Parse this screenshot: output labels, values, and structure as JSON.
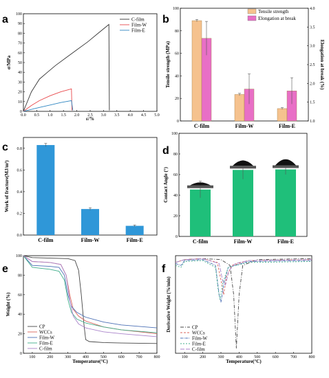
{
  "chart_data": [
    {
      "panel": "a",
      "type": "line",
      "xlabel": "ε/%",
      "ylabel": "σ/MPa",
      "xlim": [
        0,
        5.0
      ],
      "ylim": [
        0,
        100
      ],
      "xticks": [
        "0.0",
        "0.5",
        "1.0",
        "1.5",
        "2.0",
        "2.5",
        "3.0",
        "3.5",
        "4.0",
        "4.5",
        "5.0"
      ],
      "yticks": [
        "0",
        "10",
        "20",
        "30",
        "40",
        "50",
        "60",
        "70",
        "80",
        "90",
        "100"
      ],
      "legend_position": "top-right",
      "series": [
        {
          "name": "C-film",
          "color": "#333333",
          "points": [
            [
              0,
              0
            ],
            [
              0.3,
              20
            ],
            [
              0.6,
              33
            ],
            [
              0.9,
              40
            ],
            [
              1.2,
              47
            ],
            [
              1.6,
              55
            ],
            [
              2.0,
              63
            ],
            [
              2.4,
              71
            ],
            [
              2.8,
              80
            ],
            [
              3.2,
              89
            ],
            [
              3.22,
              1
            ]
          ]
        },
        {
          "name": "Film-W",
          "color": "#e8474a",
          "points": [
            [
              0,
              0
            ],
            [
              0.3,
              6
            ],
            [
              0.6,
              11
            ],
            [
              1.0,
              16
            ],
            [
              1.4,
              20
            ],
            [
              1.8,
              23
            ],
            [
              1.82,
              1
            ]
          ]
        },
        {
          "name": "Film-E",
          "color": "#2e86c1",
          "points": [
            [
              0,
              0
            ],
            [
              0.3,
              2
            ],
            [
              0.6,
              4
            ],
            [
              1.0,
              6.5
            ],
            [
              1.4,
              9
            ],
            [
              1.8,
              11
            ],
            [
              1.85,
              1
            ]
          ]
        }
      ]
    },
    {
      "panel": "b",
      "type": "bar",
      "categories": [
        "C-film",
        "Film-W",
        "Film-E"
      ],
      "ylabel": "Tensile strength (MPa)",
      "y2label": "Elongation at break (%)",
      "ylim": [
        0,
        100
      ],
      "y2lim": [
        1.0,
        4.0
      ],
      "yticks": [
        "0",
        "20",
        "40",
        "60",
        "80",
        "100"
      ],
      "y2ticks": [
        "1.0",
        "1.5",
        "2.0",
        "2.5",
        "3.0",
        "3.5",
        "4.0"
      ],
      "legend_position": "top-right",
      "series": [
        {
          "name": "Tensile strength",
          "color": "#f5c28e",
          "axis": "left",
          "values": [
            89,
            23.5,
            11
          ],
          "errors": [
            1,
            1,
            0.8
          ]
        },
        {
          "name": "Elongation at break",
          "color": "#e86fc6",
          "axis": "right",
          "values": [
            3.2,
            1.85,
            1.8
          ],
          "errors": [
            0.45,
            0.4,
            0.35
          ]
        }
      ]
    },
    {
      "panel": "c",
      "type": "bar",
      "categories": [
        "C-film",
        "Film-W",
        "Film-E"
      ],
      "ylabel": "Work of fracture(MJ/m³)",
      "ylim": [
        0,
        0.9
      ],
      "yticks": [
        "0.0",
        "0.2",
        "0.4",
        "0.6",
        "0.8"
      ],
      "series": [
        {
          "color": "#2f97d8",
          "values": [
            0.83,
            0.24,
            0.085
          ],
          "errors": [
            0.015,
            0.012,
            0.008
          ]
        }
      ]
    },
    {
      "panel": "d",
      "type": "bar",
      "categories": [
        "C-film",
        "Film-W",
        "Film-E"
      ],
      "ylabel": "Contact Angle (°)",
      "ylim": [
        0,
        100
      ],
      "yticks": [
        "0",
        "20",
        "40",
        "60",
        "80",
        "100"
      ],
      "series": [
        {
          "color": "#1fbf7a",
          "values": [
            45.5,
            64.5,
            65
          ],
          "errors": [
            8,
            9,
            5
          ]
        }
      ]
    },
    {
      "panel": "e",
      "type": "line",
      "xlabel": "Temperature(°C)",
      "ylabel": "Weight (%)",
      "xlim": [
        50,
        800
      ],
      "ylim": [
        0,
        100
      ],
      "xticks": [
        "100",
        "200",
        "300",
        "400",
        "500",
        "600",
        "700",
        "800"
      ],
      "yticks": [
        "0",
        "20",
        "40",
        "60",
        "80",
        "100"
      ],
      "legend_position": "bottom-left",
      "series": [
        {
          "name": "CP",
          "color": "#444444",
          "points": [
            [
              50,
              100
            ],
            [
              100,
              98
            ],
            [
              200,
              97.5
            ],
            [
              300,
              97
            ],
            [
              340,
              95
            ],
            [
              360,
              85
            ],
            [
              375,
              60
            ],
            [
              390,
              30
            ],
            [
              400,
              14
            ],
            [
              420,
              12
            ],
            [
              500,
              11
            ],
            [
              600,
              10.5
            ],
            [
              800,
              10
            ]
          ]
        },
        {
          "name": "WCCs",
          "color": "#d9625a",
          "points": [
            [
              50,
              100
            ],
            [
              100,
              94
            ],
            [
              200,
              93
            ],
            [
              260,
              91
            ],
            [
              290,
              80
            ],
            [
              310,
              60
            ],
            [
              330,
              45
            ],
            [
              360,
              38
            ],
            [
              400,
              33
            ],
            [
              500,
              27
            ],
            [
              600,
              24
            ],
            [
              800,
              20
            ]
          ]
        },
        {
          "name": "Film-W",
          "color": "#4a6fb5",
          "points": [
            [
              50,
              100
            ],
            [
              100,
              90
            ],
            [
              200,
              89
            ],
            [
              250,
              88
            ],
            [
              280,
              80
            ],
            [
              300,
              60
            ],
            [
              320,
              48
            ],
            [
              350,
              42
            ],
            [
              400,
              37
            ],
            [
              500,
              32
            ],
            [
              600,
              29
            ],
            [
              800,
              26
            ]
          ]
        },
        {
          "name": "Film-E",
          "color": "#3fae8a",
          "points": [
            [
              50,
              100
            ],
            [
              100,
              88
            ],
            [
              200,
              86
            ],
            [
              250,
              84
            ],
            [
              280,
              75
            ],
            [
              300,
              55
            ],
            [
              320,
              42
            ],
            [
              350,
              35
            ],
            [
              400,
              31
            ],
            [
              500,
              27
            ],
            [
              600,
              24
            ],
            [
              800,
              21
            ]
          ]
        },
        {
          "name": "C-film",
          "color": "#a882c9",
          "points": [
            [
              50,
              100
            ],
            [
              100,
              94
            ],
            [
              200,
              93
            ],
            [
              260,
              91
            ],
            [
              290,
              80
            ],
            [
              310,
              55
            ],
            [
              330,
              38
            ],
            [
              360,
              30
            ],
            [
              400,
              26
            ],
            [
              500,
              22
            ],
            [
              600,
              20
            ],
            [
              800,
              17
            ]
          ]
        }
      ]
    },
    {
      "panel": "f",
      "type": "line",
      "xlabel": "Temperature(°C)",
      "ylabel": "Derivative Weight (%/min)",
      "xlim": [
        50,
        800
      ],
      "ylim": [
        0,
        1
      ],
      "xticks": [
        "100",
        "200",
        "300",
        "400",
        "500",
        "600",
        "700",
        "800"
      ],
      "legend_position": "bottom-left",
      "series": [
        {
          "name": "CP",
          "color": "#444444",
          "points": [
            [
              50,
              0.93
            ],
            [
              100,
              0.96
            ],
            [
              200,
              0.97
            ],
            [
              300,
              0.96
            ],
            [
              350,
              0.9
            ],
            [
              370,
              0.6
            ],
            [
              385,
              0.05
            ],
            [
              400,
              0.6
            ],
            [
              420,
              0.9
            ],
            [
              500,
              0.96
            ],
            [
              800,
              0.97
            ]
          ]
        },
        {
          "name": "WCCs",
          "color": "#d9625a",
          "points": [
            [
              50,
              0.93
            ],
            [
              100,
              0.96
            ],
            [
              200,
              0.97
            ],
            [
              280,
              0.93
            ],
            [
              300,
              0.75
            ],
            [
              315,
              0.6
            ],
            [
              330,
              0.78
            ],
            [
              360,
              0.9
            ],
            [
              450,
              0.95
            ],
            [
              800,
              0.96
            ]
          ]
        },
        {
          "name": "Film-W",
          "color": "#4a6fb5",
          "points": [
            [
              50,
              0.92
            ],
            [
              80,
              0.9
            ],
            [
              100,
              0.95
            ],
            [
              200,
              0.96
            ],
            [
              270,
              0.9
            ],
            [
              290,
              0.6
            ],
            [
              300,
              0.52
            ],
            [
              315,
              0.7
            ],
            [
              340,
              0.88
            ],
            [
              450,
              0.94
            ],
            [
              800,
              0.95
            ]
          ]
        },
        {
          "name": "Film-E",
          "color": "#3fae8a",
          "points": [
            [
              50,
              0.9
            ],
            [
              80,
              0.88
            ],
            [
              100,
              0.94
            ],
            [
              200,
              0.95
            ],
            [
              270,
              0.88
            ],
            [
              285,
              0.65
            ],
            [
              295,
              0.55
            ],
            [
              310,
              0.72
            ],
            [
              340,
              0.88
            ],
            [
              450,
              0.93
            ],
            [
              800,
              0.94
            ]
          ]
        },
        {
          "name": "C-film",
          "color": "#a882c9",
          "points": [
            [
              50,
              0.93
            ],
            [
              100,
              0.96
            ],
            [
              200,
              0.97
            ],
            [
              290,
              0.92
            ],
            [
              310,
              0.74
            ],
            [
              325,
              0.7
            ],
            [
              345,
              0.85
            ],
            [
              380,
              0.92
            ],
            [
              450,
              0.95
            ],
            [
              800,
              0.96
            ]
          ]
        }
      ]
    }
  ],
  "panel_labels": [
    "a",
    "b",
    "c",
    "d",
    "e",
    "f"
  ]
}
